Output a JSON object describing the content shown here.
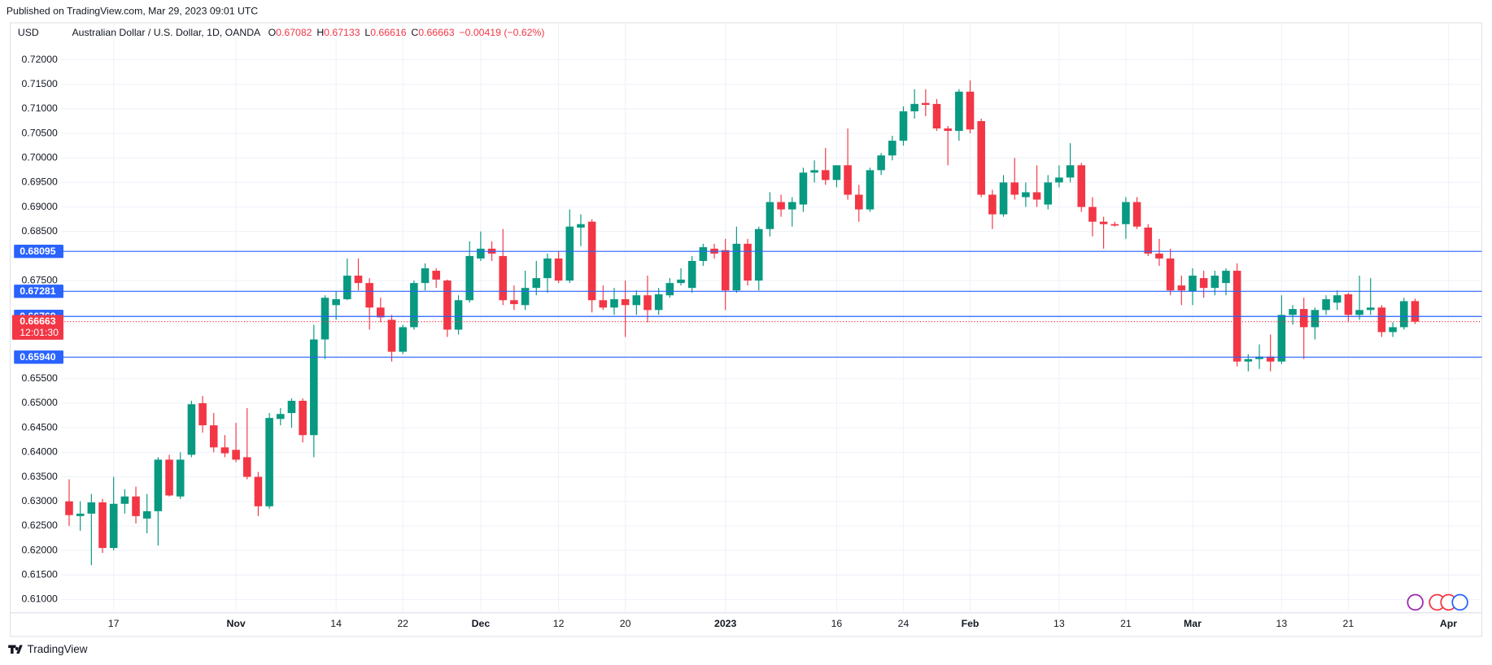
{
  "chart_data": {
    "type": "candlestick",
    "header": "Published on TradingView.com, Mar 29, 2023 09:01 UTC",
    "currency": "USD",
    "title": "Australian Dollar / U.S. Dollar, 1D, OANDA",
    "legend_ohlc": [
      {
        "label": "O",
        "value": 0.67082
      },
      {
        "label": "H",
        "value": 0.67133
      },
      {
        "label": "L",
        "value": 0.66616
      },
      {
        "label": "C",
        "value": 0.66663
      }
    ],
    "change": "−0.00419 (−0.62%)",
    "footer": "TradingView",
    "up_color": "#089981",
    "down_color": "#f23645",
    "level_color": "#2962ff",
    "grid": true,
    "open": [
      0.63,
      0.627,
      0.6275,
      0.6298,
      0.6205,
      0.6295,
      0.631,
      0.6265,
      0.628,
      0.6385,
      0.631,
      0.6395,
      0.65,
      0.6455,
      0.641,
      0.6405,
      0.639,
      0.635,
      0.629,
      0.6468,
      0.648,
      0.6505,
      0.6435,
      0.663,
      0.67,
      0.6712,
      0.676,
      0.6745,
      0.6695,
      0.667,
      0.6605,
      0.6655,
      0.6745,
      0.677,
      0.675,
      0.665,
      0.671,
      0.6795,
      0.6815,
      0.68,
      0.671,
      0.67,
      0.6735,
      0.6755,
      0.6795,
      0.675,
      0.6858,
      0.687,
      0.671,
      0.6695,
      0.6712,
      0.67,
      0.672,
      0.669,
      0.672,
      0.6745,
      0.6735,
      0.679,
      0.6815,
      0.6812,
      0.673,
      0.6825,
      0.675,
      0.6855,
      0.691,
      0.6895,
      0.6905,
      0.697,
      0.6975,
      0.6955,
      0.6985,
      0.6925,
      0.6895,
      0.6975,
      0.7005,
      0.7035,
      0.7095,
      0.7112,
      0.711,
      0.706,
      0.7055,
      0.7135,
      0.7075,
      0.6925,
      0.6885,
      0.695,
      0.692,
      0.693,
      0.6905,
      0.695,
      0.696,
      0.6985,
      0.69,
      0.687,
      0.6865,
      0.6865,
      0.691,
      0.6858,
      0.6805,
      0.6795,
      0.674,
      0.6728,
      0.6755,
      0.6735,
      0.6745,
      0.677,
      0.6585,
      0.659,
      0.6595,
      0.6585,
      0.668,
      0.6692,
      0.6655,
      0.669,
      0.6705,
      0.6722,
      0.668,
      0.669,
      0.6695,
      0.6645,
      0.6655,
      0.67082
    ],
    "high": [
      0.6345,
      0.63,
      0.6315,
      0.6305,
      0.635,
      0.6325,
      0.633,
      0.6315,
      0.639,
      0.6395,
      0.64,
      0.6505,
      0.6515,
      0.648,
      0.6435,
      0.646,
      0.649,
      0.636,
      0.648,
      0.649,
      0.651,
      0.651,
      0.666,
      0.672,
      0.6728,
      0.6795,
      0.6795,
      0.6755,
      0.6715,
      0.668,
      0.666,
      0.675,
      0.6785,
      0.6775,
      0.6752,
      0.672,
      0.683,
      0.685,
      0.683,
      0.6855,
      0.674,
      0.677,
      0.679,
      0.6805,
      0.681,
      0.6895,
      0.6885,
      0.6875,
      0.674,
      0.6735,
      0.675,
      0.673,
      0.676,
      0.6735,
      0.6755,
      0.6775,
      0.68,
      0.6825,
      0.6825,
      0.6835,
      0.686,
      0.6835,
      0.686,
      0.693,
      0.6925,
      0.692,
      0.698,
      0.6995,
      0.702,
      0.6985,
      0.706,
      0.6945,
      0.698,
      0.701,
      0.7045,
      0.7105,
      0.714,
      0.714,
      0.712,
      0.7065,
      0.714,
      0.7158,
      0.708,
      0.6935,
      0.6965,
      0.7,
      0.695,
      0.6985,
      0.6965,
      0.6985,
      0.703,
      0.699,
      0.692,
      0.688,
      0.687,
      0.692,
      0.692,
      0.6865,
      0.6835,
      0.6815,
      0.676,
      0.6775,
      0.677,
      0.677,
      0.6775,
      0.6785,
      0.66,
      0.662,
      0.664,
      0.672,
      0.67,
      0.6715,
      0.6695,
      0.672,
      0.673,
      0.6725,
      0.676,
      0.6755,
      0.67,
      0.6665,
      0.6715,
      0.67133
    ],
    "low": [
      0.625,
      0.624,
      0.617,
      0.6195,
      0.62,
      0.6275,
      0.6255,
      0.6235,
      0.621,
      0.631,
      0.6305,
      0.639,
      0.644,
      0.64,
      0.639,
      0.638,
      0.6345,
      0.627,
      0.6285,
      0.6455,
      0.645,
      0.642,
      0.639,
      0.659,
      0.667,
      0.671,
      0.673,
      0.665,
      0.6665,
      0.6585,
      0.66,
      0.665,
      0.673,
      0.6735,
      0.6635,
      0.664,
      0.6705,
      0.679,
      0.679,
      0.67,
      0.669,
      0.669,
      0.672,
      0.6725,
      0.6745,
      0.6745,
      0.682,
      0.6685,
      0.669,
      0.668,
      0.6635,
      0.668,
      0.6665,
      0.668,
      0.6715,
      0.674,
      0.6725,
      0.678,
      0.6795,
      0.669,
      0.6725,
      0.674,
      0.673,
      0.684,
      0.688,
      0.686,
      0.689,
      0.695,
      0.6945,
      0.694,
      0.6915,
      0.687,
      0.689,
      0.6965,
      0.6995,
      0.7025,
      0.708,
      0.7085,
      0.7055,
      0.6985,
      0.7035,
      0.705,
      0.692,
      0.6855,
      0.688,
      0.6915,
      0.69,
      0.69,
      0.6895,
      0.694,
      0.695,
      0.689,
      0.684,
      0.6815,
      0.686,
      0.6835,
      0.6855,
      0.68,
      0.678,
      0.672,
      0.67,
      0.67,
      0.6715,
      0.672,
      0.672,
      0.6575,
      0.6565,
      0.657,
      0.6565,
      0.658,
      0.666,
      0.659,
      0.663,
      0.668,
      0.669,
      0.6665,
      0.667,
      0.668,
      0.6635,
      0.6635,
      0.665,
      0.66616
    ],
    "close": [
      0.6272,
      0.6275,
      0.6298,
      0.6205,
      0.6295,
      0.631,
      0.627,
      0.628,
      0.6385,
      0.6312,
      0.6385,
      0.6498,
      0.6455,
      0.641,
      0.6398,
      0.6385,
      0.635,
      0.629,
      0.647,
      0.6478,
      0.6505,
      0.6435,
      0.663,
      0.6715,
      0.6712,
      0.676,
      0.6745,
      0.6695,
      0.6675,
      0.6605,
      0.6655,
      0.6745,
      0.6775,
      0.6752,
      0.665,
      0.671,
      0.68,
      0.6815,
      0.6805,
      0.671,
      0.6702,
      0.6735,
      0.6755,
      0.6795,
      0.675,
      0.686,
      0.6865,
      0.671,
      0.6695,
      0.6712,
      0.67,
      0.672,
      0.669,
      0.6722,
      0.6745,
      0.6752,
      0.679,
      0.6818,
      0.6805,
      0.673,
      0.6825,
      0.675,
      0.6855,
      0.691,
      0.6895,
      0.691,
      0.697,
      0.6975,
      0.6955,
      0.6985,
      0.6925,
      0.6895,
      0.6975,
      0.7005,
      0.7035,
      0.7095,
      0.711,
      0.7108,
      0.706,
      0.7055,
      0.7135,
      0.7058,
      0.6925,
      0.6885,
      0.695,
      0.6925,
      0.693,
      0.6915,
      0.695,
      0.696,
      0.6985,
      0.69,
      0.687,
      0.6865,
      0.6862,
      0.691,
      0.686,
      0.6805,
      0.6795,
      0.673,
      0.673,
      0.676,
      0.6735,
      0.676,
      0.677,
      0.6585,
      0.659,
      0.6595,
      0.6585,
      0.668,
      0.6692,
      0.6655,
      0.669,
      0.6712,
      0.672,
      0.668,
      0.669,
      0.6695,
      0.6645,
      0.6655,
      0.6708,
      0.66663
    ],
    "xlim": [
      -5.3,
      127
    ],
    "xticks": [
      {
        "value": 4,
        "label": "17"
      },
      {
        "value": 15,
        "label": "Nov"
      },
      {
        "value": 24,
        "label": "14"
      },
      {
        "value": 30,
        "label": "22"
      },
      {
        "value": 37,
        "label": "Dec"
      },
      {
        "value": 44,
        "label": "12"
      },
      {
        "value": 50,
        "label": "20"
      },
      {
        "value": 59,
        "label": "2023"
      },
      {
        "value": 69,
        "label": "16"
      },
      {
        "value": 75,
        "label": "24"
      },
      {
        "value": 81,
        "label": "Feb"
      },
      {
        "value": 89,
        "label": "13"
      },
      {
        "value": 95,
        "label": "21"
      },
      {
        "value": 101,
        "label": "Mar"
      },
      {
        "value": 109,
        "label": "13"
      },
      {
        "value": 115,
        "label": "21"
      },
      {
        "value": 124,
        "label": "Apr"
      }
    ],
    "ylim": [
      0.6073,
      0.7225
    ],
    "yticks": [
      {
        "value": 0.72,
        "label": "0.72000"
      },
      {
        "value": 0.715,
        "label": "0.71500"
      },
      {
        "value": 0.71,
        "label": "0.71000"
      },
      {
        "value": 0.705,
        "label": "0.70500"
      },
      {
        "value": 0.7,
        "label": "0.70000"
      },
      {
        "value": 0.695,
        "label": "0.69500"
      },
      {
        "value": 0.69,
        "label": "0.69000"
      },
      {
        "value": 0.685,
        "label": "0.68500"
      },
      {
        "value": 0.675,
        "label": "0.67500"
      },
      {
        "value": 0.655,
        "label": "0.65500"
      },
      {
        "value": 0.65,
        "label": "0.65000"
      },
      {
        "value": 0.645,
        "label": "0.64500"
      },
      {
        "value": 0.64,
        "label": "0.64000"
      },
      {
        "value": 0.635,
        "label": "0.63500"
      },
      {
        "value": 0.63,
        "label": "0.63000"
      },
      {
        "value": 0.625,
        "label": "0.62500"
      },
      {
        "value": 0.62,
        "label": "0.62000"
      },
      {
        "value": 0.615,
        "label": "0.61500"
      },
      {
        "value": 0.61,
        "label": "0.61000"
      }
    ],
    "levels": [
      0.68095,
      0.67281,
      0.66769,
      {
        "value": 0.6594,
        "label": "0.65940"
      }
    ],
    "current_price": {
      "value": 0.66663,
      "countdown": "12:01:30"
    }
  }
}
